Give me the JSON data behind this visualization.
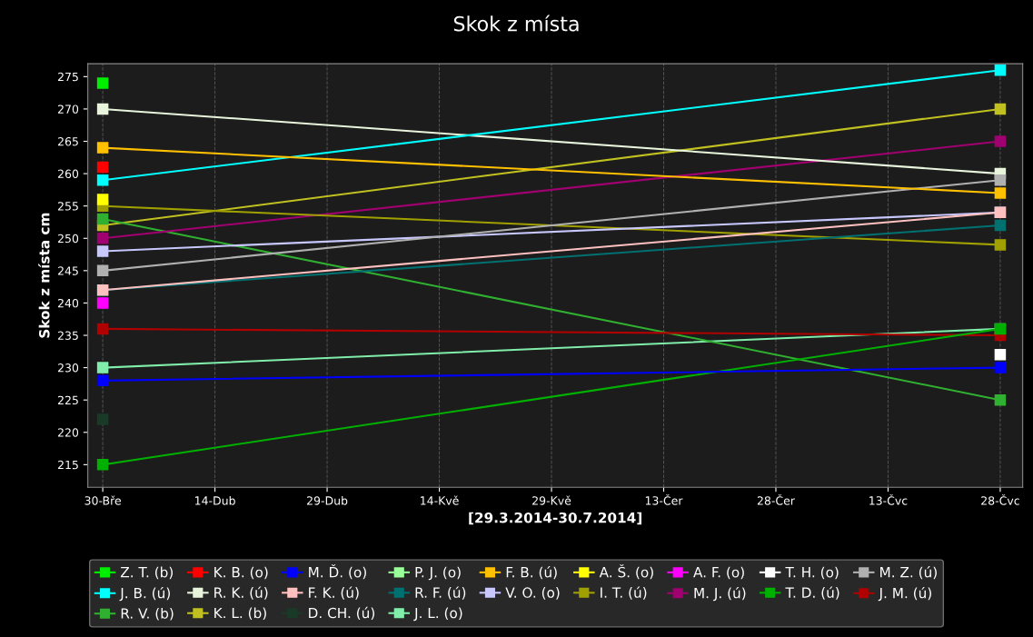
{
  "chart_data": {
    "type": "line",
    "title": "Skok z místa",
    "xlabel": "[29.3.2014-30.7.2014]",
    "ylabel": "Skok z místa cm",
    "x": [
      "2014-03-30",
      "2014-07-28"
    ],
    "xlim": [
      "2014-03-28",
      "2014-07-31"
    ],
    "xticks": [
      {
        "value": "2014-03-30",
        "label": "30-Bře"
      },
      {
        "value": "2014-04-14",
        "label": "14-Dub"
      },
      {
        "value": "2014-04-29",
        "label": "29-Dub"
      },
      {
        "value": "2014-05-14",
        "label": "14-Kvě"
      },
      {
        "value": "2014-05-29",
        "label": "29-Kvě"
      },
      {
        "value": "2014-06-13",
        "label": "13-Čer"
      },
      {
        "value": "2014-06-28",
        "label": "28-Čer"
      },
      {
        "value": "2014-07-13",
        "label": "13-Čvc"
      },
      {
        "value": "2014-07-28",
        "label": "28-Čvc"
      }
    ],
    "ylim": [
      211.5,
      277
    ],
    "yticks": [
      215,
      220,
      225,
      230,
      235,
      240,
      245,
      250,
      255,
      260,
      265,
      270,
      275
    ],
    "grid": "x",
    "legend": "bottom",
    "marker": "square",
    "line_style": "solid",
    "series": [
      {
        "name": "Z. T. (b)",
        "color": "#00ee00",
        "values": [
          274,
          null
        ]
      },
      {
        "name": "K. B. (o)",
        "color": "#ff0000",
        "values": [
          261,
          null
        ]
      },
      {
        "name": "M. Ď. (o)",
        "color": "#0000ff",
        "values": [
          228,
          230
        ]
      },
      {
        "name": "P. J. (o)",
        "color": "#99ff99",
        "values": [
          null,
          null
        ]
      },
      {
        "name": "F. B. (ú)",
        "color": "#ffc000",
        "values": [
          264,
          257
        ]
      },
      {
        "name": "A. Š. (o)",
        "color": "#ffff00",
        "values": [
          256,
          null
        ]
      },
      {
        "name": "A. F. (o)",
        "color": "#ff00ff",
        "values": [
          240,
          null
        ]
      },
      {
        "name": "T. H. (o)",
        "color": "#ffffff",
        "values": [
          null,
          232
        ]
      },
      {
        "name": "M. Z. (ú)",
        "color": "#b0b0b0",
        "values": [
          245,
          259
        ]
      },
      {
        "name": "J. B. (ú)",
        "color": "#00ffff",
        "values": [
          259,
          276
        ]
      },
      {
        "name": "R. K. (ú)",
        "color": "#e8f5dc",
        "values": [
          270,
          260
        ]
      },
      {
        "name": "F. K. (ú)",
        "color": "#ffc0c0",
        "values": [
          242,
          254
        ]
      },
      {
        "name": "R. F. (ú)",
        "color": "#007070",
        "values": [
          242,
          252
        ]
      },
      {
        "name": "V. O. (o)",
        "color": "#c8c8ff",
        "values": [
          248,
          254
        ]
      },
      {
        "name": "I. T. (ú)",
        "color": "#a0a000",
        "values": [
          255,
          249
        ]
      },
      {
        "name": "M. J. (ú)",
        "color": "#a00070",
        "values": [
          250,
          265
        ]
      },
      {
        "name": "T. D. (ú)",
        "color": "#00b000",
        "values": [
          215,
          236
        ]
      },
      {
        "name": "J. M. (ú)",
        "color": "#b00000",
        "values": [
          236,
          235
        ]
      },
      {
        "name": "R. V. (b)",
        "color": "#30b030",
        "values": [
          253,
          225
        ]
      },
      {
        "name": "K. L. (b)",
        "color": "#c0c020",
        "values": [
          252,
          270
        ]
      },
      {
        "name": "D. CH. (ú)",
        "color": "#1a3a28",
        "values": [
          222,
          null
        ]
      },
      {
        "name": "J. L. (o)",
        "color": "#80eeaa",
        "values": [
          230,
          236
        ]
      }
    ]
  }
}
